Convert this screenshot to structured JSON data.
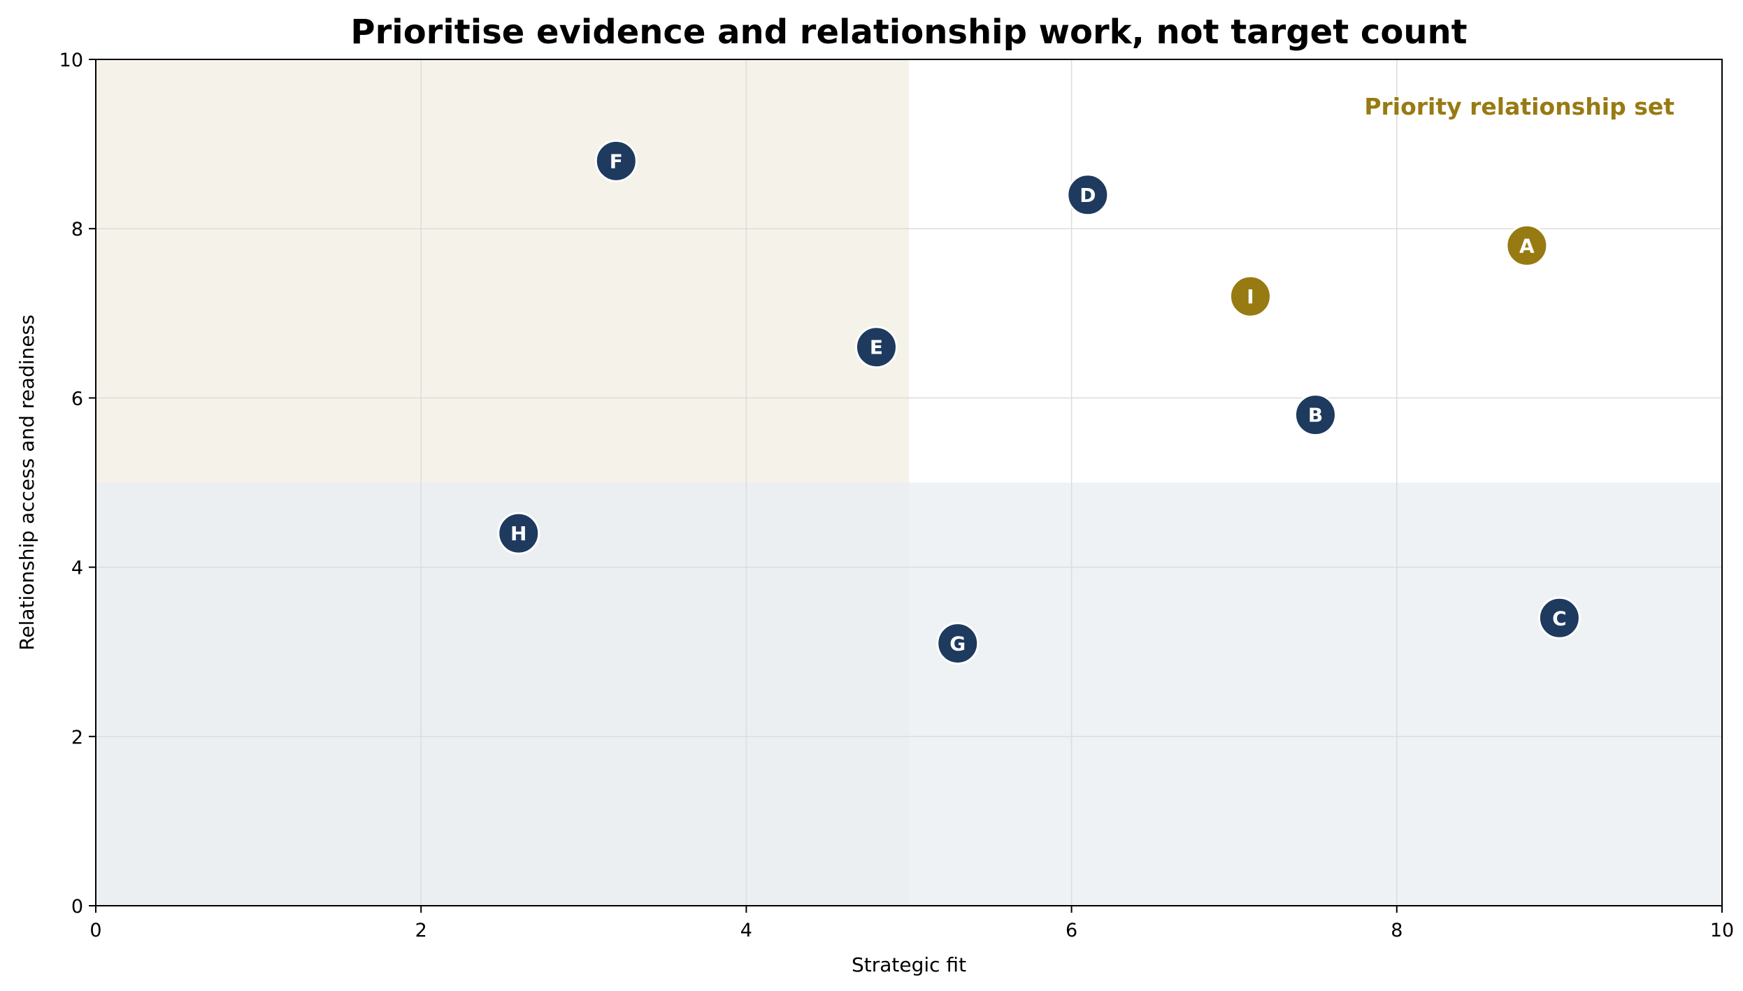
{
  "chart_data": {
    "type": "scatter",
    "title": "Prioritise evidence and relationship work, not target count",
    "xlabel": "Strategic fit",
    "ylabel": "Relationship access and readiness",
    "xlim": [
      0,
      10
    ],
    "ylim": [
      0,
      10
    ],
    "xticks": [
      "0",
      "2",
      "4",
      "6",
      "8",
      "10"
    ],
    "yticks": [
      "0",
      "2",
      "4",
      "6",
      "8",
      "10"
    ],
    "grid": true,
    "quadrant_split": {
      "x": 5,
      "y": 5
    },
    "annotation": "Priority relationship set",
    "points": [
      {
        "label": "A",
        "x": 8.8,
        "y": 7.8,
        "group": "priority"
      },
      {
        "label": "B",
        "x": 7.5,
        "y": 5.8,
        "group": "other"
      },
      {
        "label": "C",
        "x": 9.0,
        "y": 3.4,
        "group": "other"
      },
      {
        "label": "D",
        "x": 6.1,
        "y": 8.4,
        "group": "other"
      },
      {
        "label": "E",
        "x": 4.8,
        "y": 6.6,
        "group": "other"
      },
      {
        "label": "F",
        "x": 3.2,
        "y": 8.8,
        "group": "other"
      },
      {
        "label": "G",
        "x": 5.3,
        "y": 3.1,
        "group": "other"
      },
      {
        "label": "H",
        "x": 2.6,
        "y": 4.4,
        "group": "other"
      },
      {
        "label": "I",
        "x": 7.1,
        "y": 7.2,
        "group": "priority"
      }
    ]
  },
  "colors": {
    "priority": "#987a12",
    "other": "#1e3a5f",
    "quadrant_top_left": "#f5f2ea",
    "quadrant_bottom_left": "#ebeff1",
    "quadrant_bottom_right": "#eef2f5",
    "quadrant_top_right": "#ffffff",
    "annotation": "#987a12"
  }
}
